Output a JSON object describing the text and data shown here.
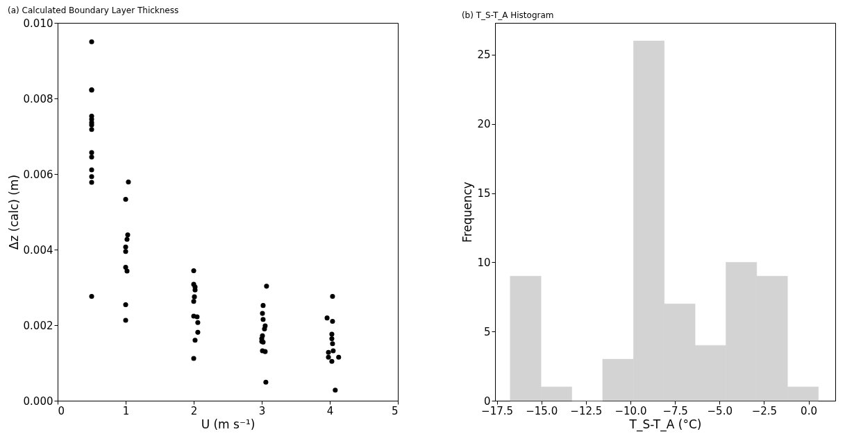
{
  "chart_data": [
    {
      "type": "scatter",
      "title": "(a) Calculated Boundary Layer Thickness",
      "xlabel": "U (m s⁻¹)",
      "ylabel": "Δz (calc) (m)",
      "marker": "circle",
      "series": [
        {
          "color": "#000000",
          "x": [
            0.5,
            0.5,
            0.5,
            0.5,
            0.5,
            0.5,
            0.5,
            0.5,
            0.5,
            0.5,
            0.5,
            0.5,
            0.5,
            0.5,
            1.04,
            1.0,
            1.03,
            1.02,
            1.0,
            1.0,
            1.0,
            1.02,
            1.0,
            1.0,
            2.0,
            2.0,
            2.02,
            2.02,
            2.01,
            2.0,
            2.0,
            2.05,
            2.06,
            2.06,
            2.02,
            2.0,
            3.07,
            3.02,
            3.01,
            3.02,
            3.05,
            3.04,
            3.01,
            3.0,
            3.0,
            3.02,
            3.01,
            3.05,
            3.06,
            4.04,
            3.96,
            4.04,
            4.03,
            4.03,
            4.04,
            4.05,
            3.98,
            3.98,
            4.13,
            4.03,
            4.08
          ],
          "values": [
            0.0095,
            0.00822,
            0.00823,
            0.00753,
            0.00745,
            0.00736,
            0.0073,
            0.00718,
            0.00657,
            0.00645,
            0.00611,
            0.00593,
            0.00578,
            0.00276,
            0.00579,
            0.00533,
            0.00439,
            0.00427,
            0.00407,
            0.00395,
            0.00353,
            0.00343,
            0.00254,
            0.00213,
            0.00344,
            0.00308,
            0.00301,
            0.00293,
            0.00275,
            0.00263,
            0.00224,
            0.00222,
            0.00207,
            0.00181,
            0.0016,
            0.00112,
            0.00303,
            0.00252,
            0.00231,
            0.00215,
            0.00198,
            0.0019,
            0.00172,
            0.00164,
            0.00157,
            0.00155,
            0.00132,
            0.0013,
            0.00049,
            0.00276,
            0.00219,
            0.0021,
            0.00176,
            0.00164,
            0.00151,
            0.00132,
            0.00128,
            0.00115,
            0.00115,
            0.00104,
            0.00028
          ]
        }
      ],
      "xlim": [
        0,
        5
      ],
      "xticks": [
        0,
        1,
        2,
        3,
        4,
        5
      ],
      "ylim": [
        0,
        0.01
      ],
      "yticks": [
        {
          "value": 0,
          "label": "0.000"
        },
        {
          "value": 0.002,
          "label": "0.002"
        },
        {
          "value": 0.004,
          "label": "0.004"
        },
        {
          "value": 0.006,
          "label": "0.006"
        },
        {
          "value": 0.008,
          "label": "0.008"
        },
        {
          "value": 0.01,
          "label": "0.010"
        }
      ],
      "grid": false
    },
    {
      "type": "histogram",
      "title": "(b) T_S-T_A Histogram",
      "xlabel": "T_S-T_A (°C)",
      "ylabel": "Frequency",
      "color": "#d3d3d3",
      "bins": [
        -16.75,
        -15.02,
        -13.29,
        -11.56,
        -9.83,
        -8.1,
        -6.37,
        -4.64,
        -2.91,
        -1.18,
        0.55
      ],
      "values": [
        9,
        1,
        0,
        3,
        26,
        7,
        4,
        10,
        9,
        1
      ],
      "xlim": [
        -17.6,
        1.5
      ],
      "xticks": [
        {
          "value": -17.5,
          "label": "−17.5"
        },
        {
          "value": -15,
          "label": "−15.0"
        },
        {
          "value": -12.5,
          "label": "−12.5"
        },
        {
          "value": -10,
          "label": "−10.0"
        },
        {
          "value": -7.5,
          "label": "−7.5"
        },
        {
          "value": -5,
          "label": "−5.0"
        },
        {
          "value": -2.5,
          "label": "−2.5"
        },
        {
          "value": 0,
          "label": "0.0"
        }
      ],
      "ylim": [
        0,
        27.3
      ],
      "yticks": [
        0,
        5,
        10,
        15,
        20,
        25
      ],
      "grid": false
    }
  ]
}
